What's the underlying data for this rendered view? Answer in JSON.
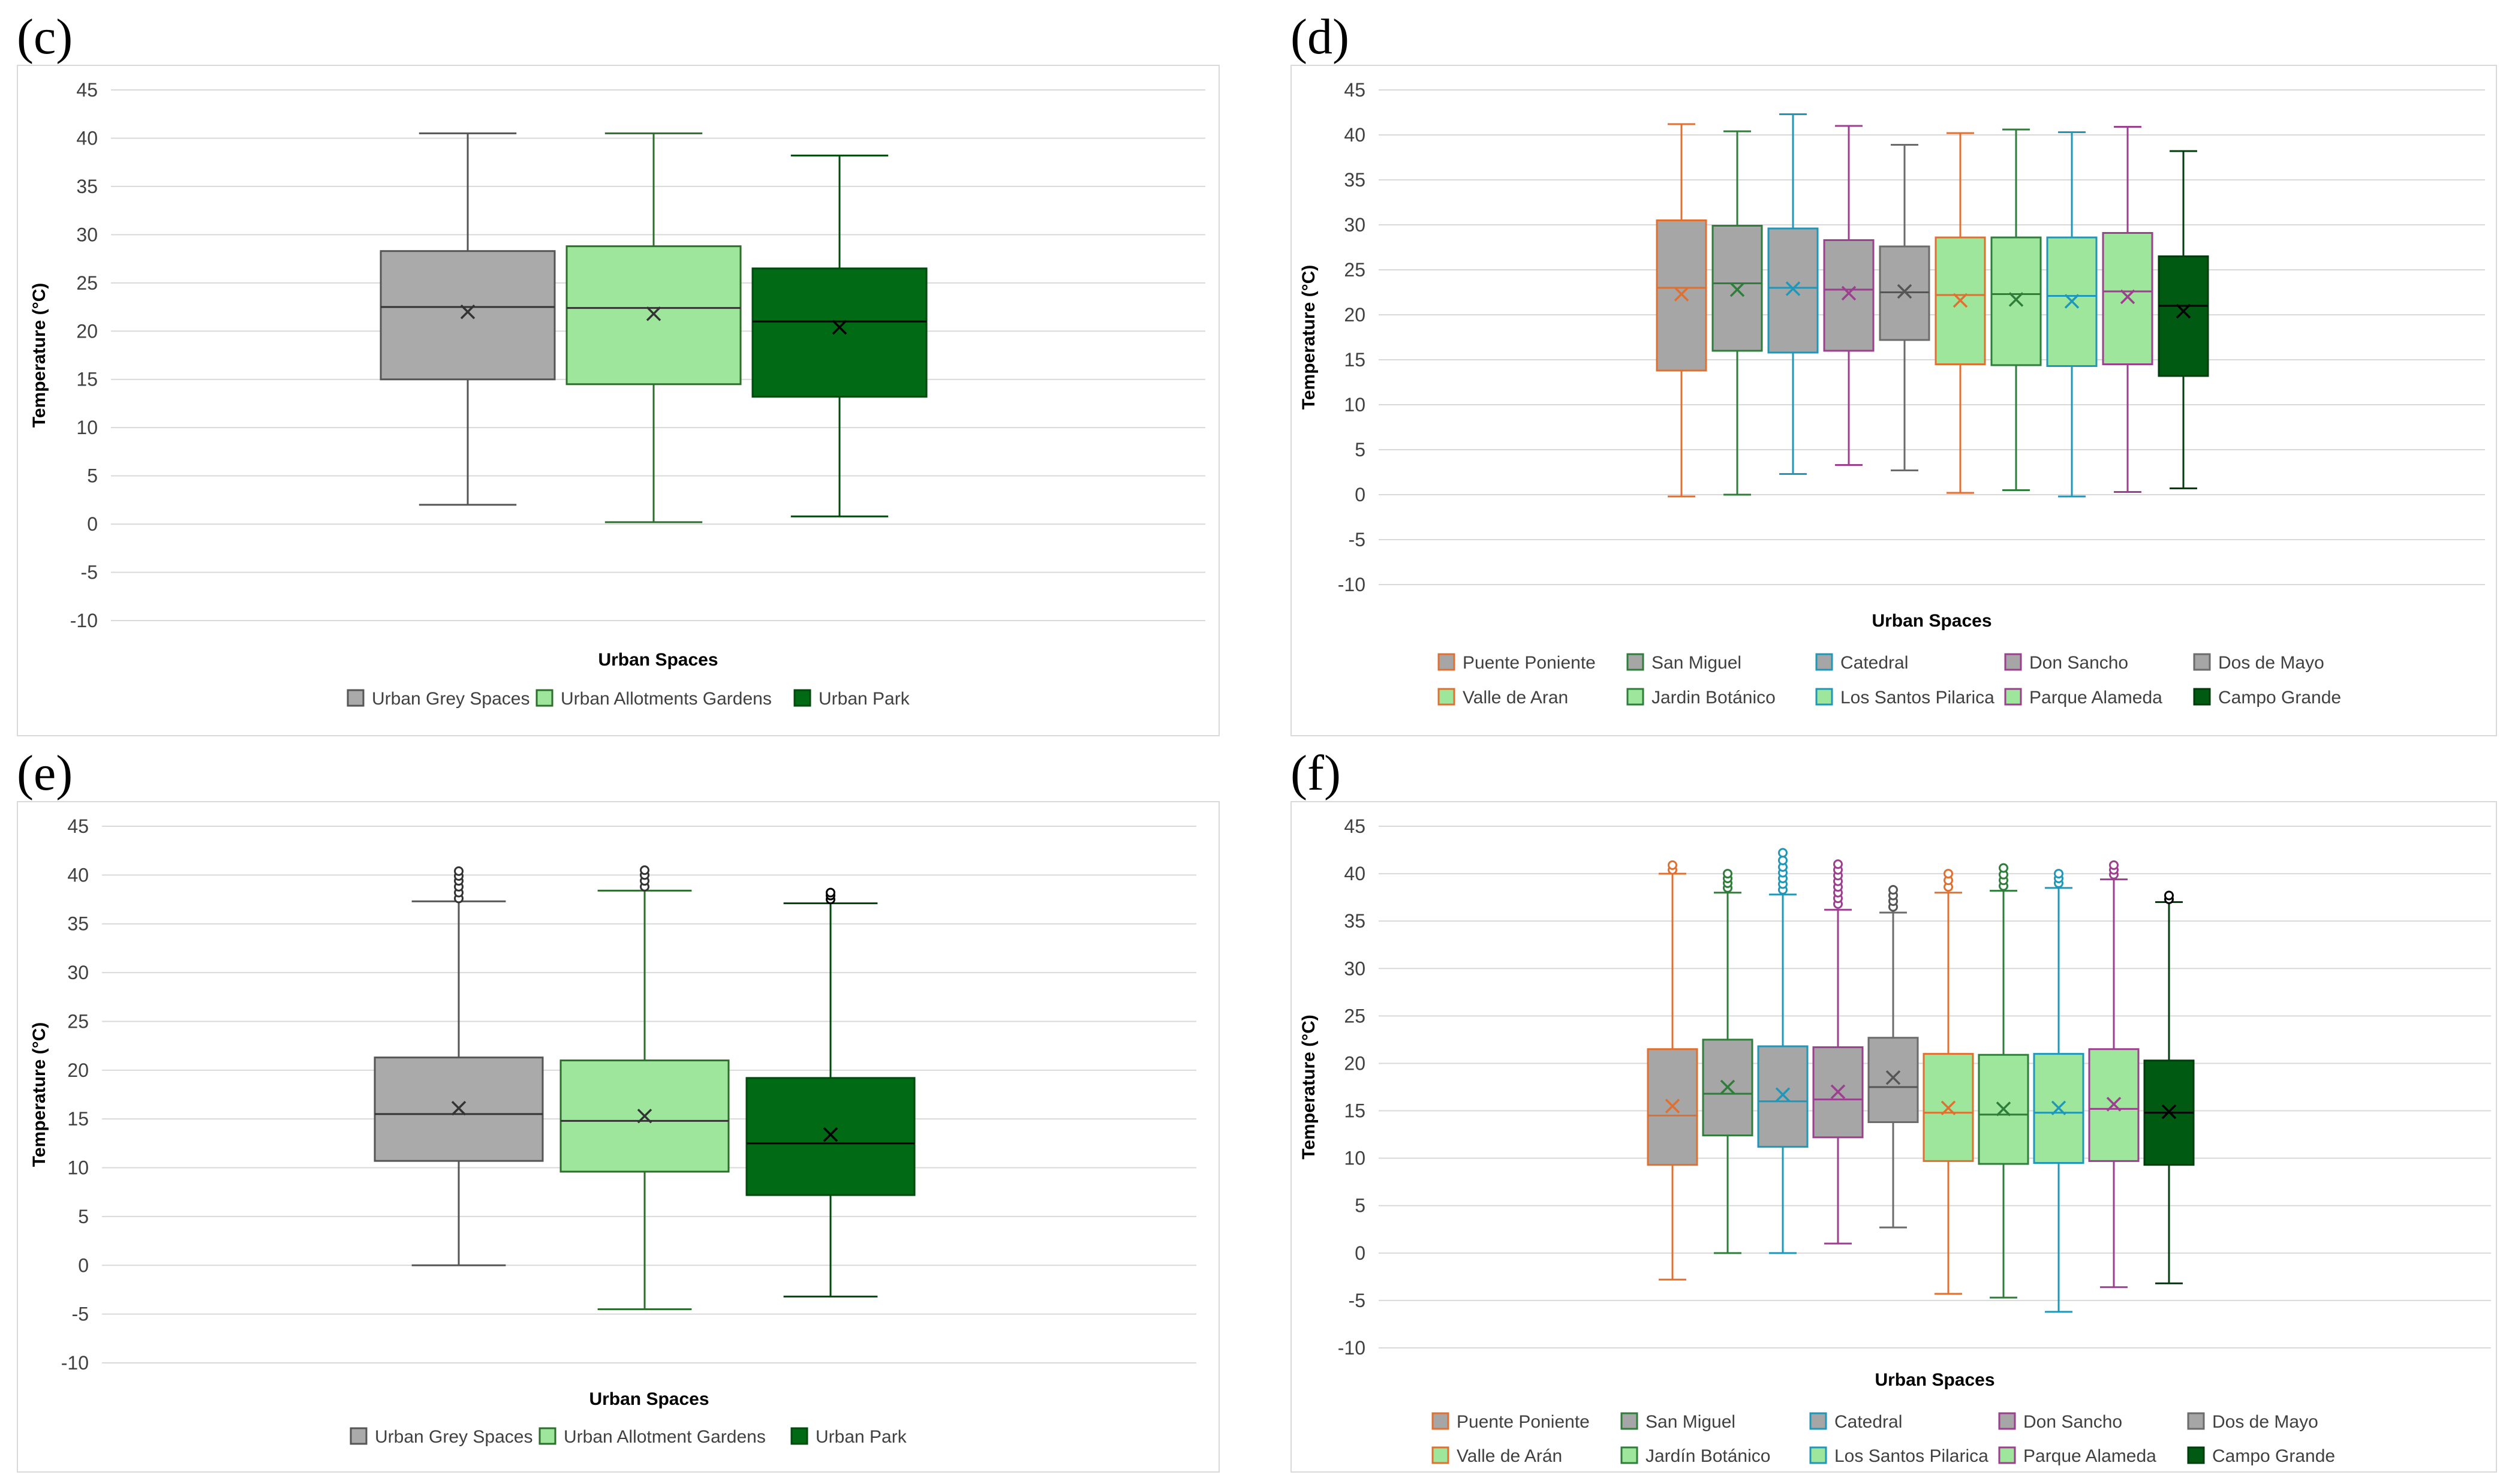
{
  "panels": [
    {
      "label": "(c)",
      "chart_data": {
        "type": "boxplot",
        "xlabel": "Urban Spaces",
        "ylabel": "Temperature (°C)",
        "ylim": [
          -10,
          45
        ],
        "yticks": [
          -10,
          -5,
          0,
          5,
          10,
          15,
          20,
          25,
          30,
          35,
          40,
          45
        ],
        "grid": true,
        "series": [
          {
            "name": "Urban Grey Spaces",
            "min": 2.0,
            "q1": 15.0,
            "median": 22.5,
            "q3": 28.3,
            "max": 40.5,
            "mean": 22.0,
            "outliers": [],
            "fill": "#aaaaaa",
            "stroke": "#555555",
            "mark": "#333333"
          },
          {
            "name": "Urban Allotments Gardens",
            "min": 0.2,
            "q1": 14.5,
            "median": 22.4,
            "q3": 28.8,
            "max": 40.5,
            "mean": 21.8,
            "outliers": [],
            "fill": "#9de69b",
            "stroke": "#2d6e2d",
            "mark": "#333333"
          },
          {
            "name": "Urban Park",
            "min": 0.8,
            "q1": 13.2,
            "median": 21.0,
            "q3": 26.5,
            "max": 38.2,
            "mean": 20.4,
            "outliers": [],
            "fill": "#006b14",
            "stroke": "#004a0d",
            "mark": "#000000"
          }
        ]
      }
    },
    {
      "label": "(d)",
      "chart_data": {
        "type": "boxplot",
        "xlabel": "Urban Spaces",
        "ylabel": "Temperature (°C)",
        "ylim": [
          -10,
          45
        ],
        "yticks": [
          -10,
          -5,
          0,
          5,
          10,
          15,
          20,
          25,
          30,
          35,
          40,
          45
        ],
        "grid": true,
        "series": [
          {
            "name": "Puente Poniente",
            "min": -0.2,
            "q1": 13.8,
            "median": 23.0,
            "q3": 30.5,
            "max": 41.2,
            "mean": 22.3,
            "outliers": [],
            "fill": "#a6a6a6",
            "stroke": "#e07030",
            "mark": "#e07030"
          },
          {
            "name": "San Miguel",
            "min": 0.0,
            "q1": 16.0,
            "median": 23.5,
            "q3": 29.9,
            "max": 40.4,
            "mean": 22.8,
            "outliers": [],
            "fill": "#a6a6a6",
            "stroke": "#2e7d3a",
            "mark": "#2e7d3a"
          },
          {
            "name": "Catedral",
            "min": 2.3,
            "q1": 15.8,
            "median": 23.0,
            "q3": 29.6,
            "max": 42.3,
            "mean": 22.9,
            "outliers": [],
            "fill": "#a6a6a6",
            "stroke": "#1f97b8",
            "mark": "#1f97b8"
          },
          {
            "name": "Don Sancho",
            "min": 3.3,
            "q1": 16.0,
            "median": 22.8,
            "q3": 28.3,
            "max": 41.0,
            "mean": 22.4,
            "outliers": [],
            "fill": "#a6a6a6",
            "stroke": "#9b3f8e",
            "mark": "#9b3f8e"
          },
          {
            "name": "Dos de Mayo",
            "min": 2.7,
            "q1": 17.2,
            "median": 22.5,
            "q3": 27.6,
            "max": 38.9,
            "mean": 22.6,
            "outliers": [],
            "fill": "#a6a6a6",
            "stroke": "#6b6b6b",
            "mark": "#555555"
          },
          {
            "name": "Valle de Aran",
            "min": 0.2,
            "q1": 14.5,
            "median": 22.2,
            "q3": 28.6,
            "max": 40.2,
            "mean": 21.6,
            "outliers": [],
            "fill": "#9de69b",
            "stroke": "#e07030",
            "mark": "#e07030"
          },
          {
            "name": "Jardin Botánico",
            "min": 0.5,
            "q1": 14.4,
            "median": 22.3,
            "q3": 28.6,
            "max": 40.6,
            "mean": 21.7,
            "outliers": [],
            "fill": "#9de69b",
            "stroke": "#2e7d3a",
            "mark": "#2e7d3a"
          },
          {
            "name": "Los Santos Pilarica",
            "min": -0.2,
            "q1": 14.3,
            "median": 22.1,
            "q3": 28.6,
            "max": 40.3,
            "mean": 21.5,
            "outliers": [],
            "fill": "#9de69b",
            "stroke": "#1f97b8",
            "mark": "#1f97b8"
          },
          {
            "name": "Parque Alameda",
            "min": 0.3,
            "q1": 14.5,
            "median": 22.6,
            "q3": 29.1,
            "max": 40.9,
            "mean": 22.0,
            "outliers": [],
            "fill": "#9de69b",
            "stroke": "#9b3f8e",
            "mark": "#9b3f8e"
          },
          {
            "name": "Campo Grande",
            "min": 0.7,
            "q1": 13.2,
            "median": 21.0,
            "q3": 26.5,
            "max": 38.2,
            "mean": 20.4,
            "outliers": [],
            "fill": "#005a12",
            "stroke": "#003d0c",
            "mark": "#000000"
          }
        ]
      }
    },
    {
      "label": "(e)",
      "chart_data": {
        "type": "boxplot",
        "xlabel": "Urban Spaces",
        "ylabel": "Temperature (°C)",
        "ylim": [
          -10,
          45
        ],
        "yticks": [
          -10,
          -5,
          0,
          5,
          10,
          15,
          20,
          25,
          30,
          35,
          40,
          45
        ],
        "grid": true,
        "series": [
          {
            "name": "Urban Grey Spaces",
            "min": 0.0,
            "q1": 10.7,
            "median": 15.5,
            "q3": 21.3,
            "max": 37.3,
            "mean": 16.1,
            "outliers": [
              37.6,
              38.2,
              38.8,
              39.4,
              39.9,
              40.4
            ],
            "fill": "#aaaaaa",
            "stroke": "#555555",
            "mark": "#333333"
          },
          {
            "name": "Urban Allotment Gardens",
            "min": -4.5,
            "q1": 9.6,
            "median": 14.8,
            "q3": 21.0,
            "max": 38.4,
            "mean": 15.3,
            "outliers": [
              38.8,
              39.4,
              40.0,
              40.5
            ],
            "fill": "#9de69b",
            "stroke": "#2d6e2d",
            "mark": "#333333"
          },
          {
            "name": "Urban Park",
            "min": -3.2,
            "q1": 7.2,
            "median": 12.5,
            "q3": 19.2,
            "max": 37.1,
            "mean": 13.4,
            "outliers": [
              37.5,
              37.9,
              38.2
            ],
            "fill": "#006b14",
            "stroke": "#004a0d",
            "mark": "#000000"
          }
        ]
      }
    },
    {
      "label": "(f)",
      "chart_data": {
        "type": "boxplot",
        "xlabel": "Urban Spaces",
        "ylabel": "Temperature (°C)",
        "ylim": [
          -10,
          45
        ],
        "yticks": [
          -10,
          -5,
          0,
          5,
          10,
          15,
          20,
          25,
          30,
          35,
          40,
          45
        ],
        "grid": true,
        "series": [
          {
            "name": "Puente Poniente",
            "min": -2.8,
            "q1": 9.3,
            "median": 14.5,
            "q3": 21.5,
            "max": 40.0,
            "mean": 15.5,
            "outliers": [
              40.4,
              40.9
            ],
            "fill": "#a6a6a6",
            "stroke": "#e07030",
            "mark": "#e07030"
          },
          {
            "name": "San Miguel",
            "min": 0.0,
            "q1": 12.4,
            "median": 16.8,
            "q3": 22.5,
            "max": 38.0,
            "mean": 17.5,
            "outliers": [
              38.5,
              39.0,
              39.5,
              40.0
            ],
            "fill": "#a6a6a6",
            "stroke": "#2e7d3a",
            "mark": "#2e7d3a"
          },
          {
            "name": "Catedral",
            "min": 0.0,
            "q1": 11.2,
            "median": 16.0,
            "q3": 21.8,
            "max": 37.8,
            "mean": 16.7,
            "outliers": [
              38.3,
              38.9,
              39.5,
              40.1,
              40.7,
              41.4,
              42.2
            ],
            "fill": "#a6a6a6",
            "stroke": "#1f97b8",
            "mark": "#1f97b8"
          },
          {
            "name": "Don Sancho",
            "min": 1.0,
            "q1": 12.2,
            "median": 16.2,
            "q3": 21.7,
            "max": 36.2,
            "mean": 17.0,
            "outliers": [
              36.8,
              37.4,
              38.0,
              38.6,
              39.2,
              39.8,
              40.4,
              41.0
            ],
            "fill": "#a6a6a6",
            "stroke": "#9b3f8e",
            "mark": "#9b3f8e"
          },
          {
            "name": "Dos de Mayo",
            "min": 2.7,
            "q1": 13.8,
            "median": 17.5,
            "q3": 22.7,
            "max": 35.9,
            "mean": 18.5,
            "outliers": [
              36.5,
              37.1,
              37.7,
              38.3
            ],
            "fill": "#a6a6a6",
            "stroke": "#6b6b6b",
            "mark": "#555555"
          },
          {
            "name": "Valle de Arán",
            "min": -4.3,
            "q1": 9.7,
            "median": 14.8,
            "q3": 21.0,
            "max": 38.0,
            "mean": 15.3,
            "outliers": [
              38.6,
              39.3,
              40.0
            ],
            "fill": "#9de69b",
            "stroke": "#e07030",
            "mark": "#e07030"
          },
          {
            "name": "Jardín Botánico",
            "min": -4.7,
            "q1": 9.4,
            "median": 14.6,
            "q3": 20.9,
            "max": 38.2,
            "mean": 15.2,
            "outliers": [
              38.7,
              39.3,
              39.9,
              40.6
            ],
            "fill": "#9de69b",
            "stroke": "#2e7d3a",
            "mark": "#2e7d3a"
          },
          {
            "name": "Los Santos Pilarica",
            "min": -6.2,
            "q1": 9.5,
            "median": 14.8,
            "q3": 21.0,
            "max": 38.5,
            "mean": 15.3,
            "outliers": [
              39.0,
              39.5,
              40.0
            ],
            "fill": "#9de69b",
            "stroke": "#1f97b8",
            "mark": "#1f97b8"
          },
          {
            "name": "Parque Alameda",
            "min": -3.6,
            "q1": 9.7,
            "median": 15.2,
            "q3": 21.5,
            "max": 39.4,
            "mean": 15.7,
            "outliers": [
              39.9,
              40.4,
              40.9
            ],
            "fill": "#9de69b",
            "stroke": "#9b3f8e",
            "mark": "#9b3f8e"
          },
          {
            "name": "Campo Grande",
            "min": -3.2,
            "q1": 9.3,
            "median": 14.8,
            "q3": 20.3,
            "max": 37.0,
            "mean": 14.9,
            "outliers": [
              37.3,
              37.7
            ],
            "fill": "#005a12",
            "stroke": "#003d0c",
            "mark": "#000000"
          }
        ]
      }
    }
  ]
}
